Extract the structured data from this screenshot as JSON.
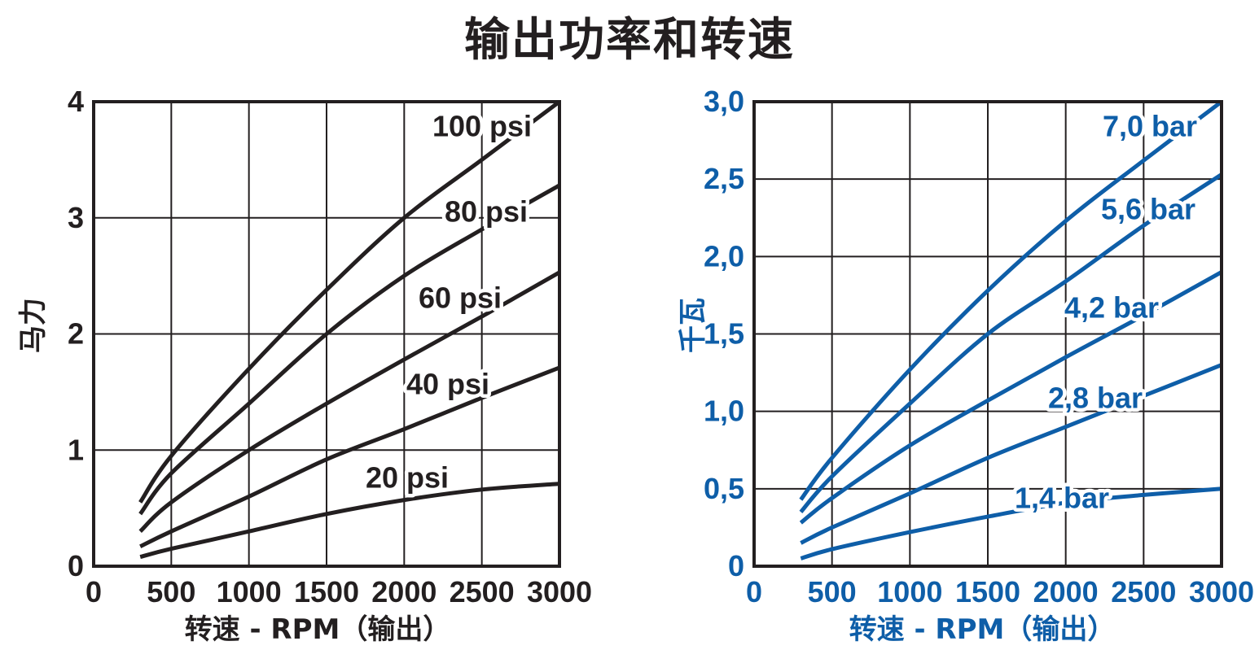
{
  "title": "输出功率和转速",
  "chart_data": [
    {
      "type": "line",
      "color": "#231f20",
      "xlabel": "转速 - RPM（输出）",
      "ylabel": "马力",
      "xlim": [
        0,
        3000
      ],
      "ylim": [
        0,
        4
      ],
      "x_ticks": [
        "0",
        "500",
        "1000",
        "1500",
        "2000",
        "2500",
        "3000"
      ],
      "y_ticks": [
        "0",
        "1",
        "2",
        "3",
        "4"
      ],
      "grid": true,
      "series": [
        {
          "name": "100 psi",
          "x": [
            300,
            500,
            1000,
            1500,
            2000,
            2500,
            3000
          ],
          "y": [
            0.55,
            0.95,
            1.7,
            2.38,
            3.0,
            3.5,
            4.0
          ]
        },
        {
          "name": "80 psi",
          "x": [
            300,
            500,
            1000,
            1500,
            2000,
            2500,
            3000
          ],
          "y": [
            0.45,
            0.8,
            1.4,
            2.0,
            2.5,
            2.9,
            3.28
          ]
        },
        {
          "name": "60 psi",
          "x": [
            300,
            500,
            1000,
            1500,
            2000,
            2500,
            3000
          ],
          "y": [
            0.3,
            0.55,
            1.0,
            1.4,
            1.78,
            2.15,
            2.53
          ]
        },
        {
          "name": "40 psi",
          "x": [
            300,
            500,
            1000,
            1500,
            2000,
            2500,
            3000
          ],
          "y": [
            0.17,
            0.3,
            0.6,
            0.92,
            1.18,
            1.45,
            1.71
          ]
        },
        {
          "name": "20 psi",
          "x": [
            300,
            500,
            1000,
            1500,
            2000,
            2500,
            3000
          ],
          "y": [
            0.08,
            0.15,
            0.3,
            0.45,
            0.57,
            0.66,
            0.71
          ]
        }
      ]
    },
    {
      "type": "line",
      "color": "#0e5ea8",
      "xlabel": "转速 - RPM（输出）",
      "ylabel": "千瓦",
      "xlim": [
        0,
        3000
      ],
      "ylim": [
        0,
        3.0
      ],
      "x_ticks": [
        "0",
        "500",
        "1000",
        "1500",
        "2000",
        "2500",
        "3000"
      ],
      "y_ticks": [
        "0",
        "0,5",
        "1,0",
        "1,5",
        "2,0",
        "2,5",
        "3,0"
      ],
      "grid": true,
      "series": [
        {
          "name": "7,0 bar",
          "x": [
            300,
            500,
            1000,
            1500,
            2000,
            2500,
            3000
          ],
          "y": [
            0.43,
            0.7,
            1.27,
            1.78,
            2.23,
            2.62,
            3.0
          ]
        },
        {
          "name": "5,6 bar",
          "x": [
            300,
            500,
            1000,
            1500,
            2000,
            2500,
            3000
          ],
          "y": [
            0.35,
            0.58,
            1.05,
            1.5,
            1.84,
            2.2,
            2.53
          ]
        },
        {
          "name": "4,2 bar",
          "x": [
            300,
            500,
            1000,
            1500,
            2000,
            2500,
            3000
          ],
          "y": [
            0.28,
            0.44,
            0.78,
            1.07,
            1.35,
            1.62,
            1.9
          ]
        },
        {
          "name": "2,8 bar",
          "x": [
            300,
            500,
            1000,
            1500,
            2000,
            2500,
            3000
          ],
          "y": [
            0.15,
            0.25,
            0.47,
            0.7,
            0.9,
            1.1,
            1.3
          ]
        },
        {
          "name": "1,4 bar",
          "x": [
            300,
            500,
            1000,
            1500,
            2000,
            2500,
            3000
          ],
          "y": [
            0.05,
            0.11,
            0.22,
            0.32,
            0.41,
            0.46,
            0.5
          ]
        }
      ]
    }
  ]
}
